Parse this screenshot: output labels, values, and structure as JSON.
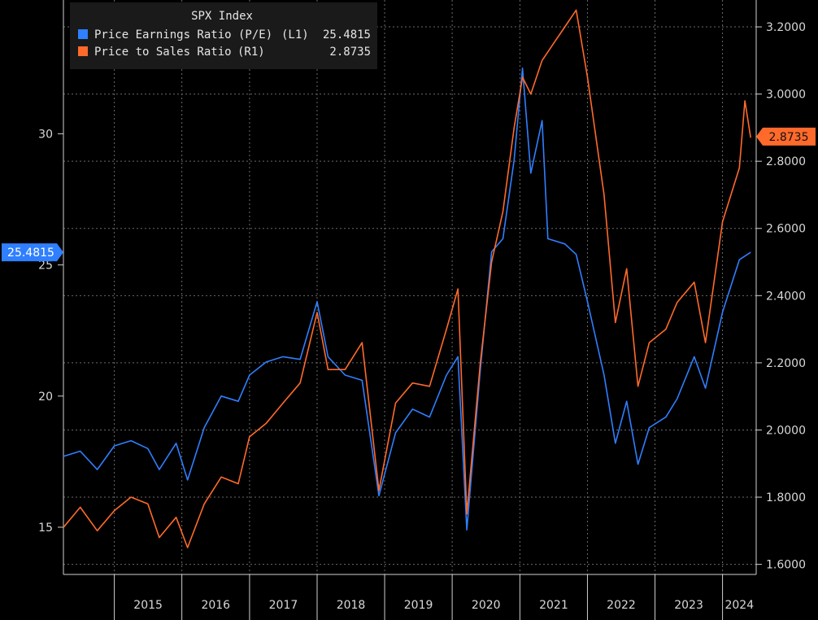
{
  "chart_data": {
    "type": "line",
    "title": "SPX Index",
    "x_range": [
      "2014-04-01",
      "2024-07-01"
    ],
    "x_ticks": [
      "2015",
      "2016",
      "2017",
      "2018",
      "2019",
      "2020",
      "2021",
      "2022",
      "2023",
      "2024"
    ],
    "y_left": {
      "range": [
        13.2,
        35.1
      ],
      "ticks": [
        "15",
        "20",
        "25",
        "30"
      ]
    },
    "y_right": {
      "range": [
        1.57,
        3.28
      ],
      "ticks": [
        "1.6000",
        "1.8000",
        "2.0000",
        "2.2000",
        "2.4000",
        "2.6000",
        "2.8000",
        "3.0000",
        "3.2000"
      ]
    },
    "grid": true,
    "legend_placement": "top-left",
    "series": [
      {
        "name": "Price Earnings Ratio (P/E)",
        "axis_label": "(L1)",
        "last_value": "25.4815",
        "color": "#2f7fff",
        "points": [
          [
            "2014-04-01",
            17.7
          ],
          [
            "2014-07-01",
            17.9
          ],
          [
            "2014-10-01",
            17.2
          ],
          [
            "2015-01-01",
            18.1
          ],
          [
            "2015-04-01",
            18.3
          ],
          [
            "2015-07-01",
            18.0
          ],
          [
            "2015-09-01",
            17.2
          ],
          [
            "2015-12-01",
            18.2
          ],
          [
            "2016-02-01",
            16.8
          ],
          [
            "2016-05-01",
            18.8
          ],
          [
            "2016-08-01",
            20.0
          ],
          [
            "2016-11-01",
            19.8
          ],
          [
            "2017-01-01",
            20.8
          ],
          [
            "2017-04-01",
            21.3
          ],
          [
            "2017-07-01",
            21.5
          ],
          [
            "2017-10-01",
            21.4
          ],
          [
            "2018-01-01",
            23.6
          ],
          [
            "2018-03-01",
            21.5
          ],
          [
            "2018-06-01",
            20.8
          ],
          [
            "2018-09-01",
            20.6
          ],
          [
            "2018-12-01",
            16.2
          ],
          [
            "2019-03-01",
            18.6
          ],
          [
            "2019-06-01",
            19.5
          ],
          [
            "2019-09-01",
            19.2
          ],
          [
            "2019-12-01",
            20.8
          ],
          [
            "2020-02-01",
            21.5
          ],
          [
            "2020-03-20",
            14.9
          ],
          [
            "2020-06-01",
            21.0
          ],
          [
            "2020-08-01",
            25.5
          ],
          [
            "2020-10-01",
            26.0
          ],
          [
            "2020-12-01",
            29.0
          ],
          [
            "2021-01-15",
            32.5
          ],
          [
            "2021-03-01",
            28.5
          ],
          [
            "2021-05-01",
            30.5
          ],
          [
            "2021-06-01",
            26.0
          ],
          [
            "2021-09-01",
            25.8
          ],
          [
            "2021-11-01",
            25.4
          ],
          [
            "2022-01-01",
            23.6
          ],
          [
            "2022-04-01",
            20.8
          ],
          [
            "2022-06-01",
            18.2
          ],
          [
            "2022-08-01",
            19.8
          ],
          [
            "2022-10-01",
            17.4
          ],
          [
            "2022-12-01",
            18.8
          ],
          [
            "2023-03-01",
            19.2
          ],
          [
            "2023-05-01",
            19.9
          ],
          [
            "2023-08-01",
            21.5
          ],
          [
            "2023-10-01",
            20.3
          ],
          [
            "2024-01-01",
            23.2
          ],
          [
            "2024-04-01",
            25.2
          ],
          [
            "2024-06-01",
            25.48
          ]
        ]
      },
      {
        "name": "Price to Sales Ratio",
        "axis_label": "(R1)",
        "last_value": "2.8735",
        "color": "#ff6a2b",
        "points": [
          [
            "2014-04-01",
            1.71
          ],
          [
            "2014-07-01",
            1.77
          ],
          [
            "2014-10-01",
            1.7
          ],
          [
            "2015-01-01",
            1.76
          ],
          [
            "2015-04-01",
            1.8
          ],
          [
            "2015-07-01",
            1.78
          ],
          [
            "2015-09-01",
            1.68
          ],
          [
            "2015-12-01",
            1.74
          ],
          [
            "2016-02-01",
            1.65
          ],
          [
            "2016-05-01",
            1.78
          ],
          [
            "2016-08-01",
            1.86
          ],
          [
            "2016-11-01",
            1.84
          ],
          [
            "2017-01-01",
            1.98
          ],
          [
            "2017-04-01",
            2.02
          ],
          [
            "2017-07-01",
            2.08
          ],
          [
            "2017-10-01",
            2.14
          ],
          [
            "2018-01-01",
            2.35
          ],
          [
            "2018-03-01",
            2.18
          ],
          [
            "2018-06-01",
            2.18
          ],
          [
            "2018-09-01",
            2.26
          ],
          [
            "2018-12-01",
            1.82
          ],
          [
            "2019-03-01",
            2.08
          ],
          [
            "2019-06-01",
            2.14
          ],
          [
            "2019-09-01",
            2.13
          ],
          [
            "2019-12-01",
            2.3
          ],
          [
            "2020-02-01",
            2.42
          ],
          [
            "2020-03-20",
            1.75
          ],
          [
            "2020-06-01",
            2.2
          ],
          [
            "2020-08-01",
            2.5
          ],
          [
            "2020-10-01",
            2.65
          ],
          [
            "2020-12-01",
            2.9
          ],
          [
            "2021-01-15",
            3.05
          ],
          [
            "2021-03-01",
            3.0
          ],
          [
            "2021-05-01",
            3.1
          ],
          [
            "2021-07-01",
            3.15
          ],
          [
            "2021-09-01",
            3.2
          ],
          [
            "2021-11-01",
            3.25
          ],
          [
            "2022-01-01",
            3.05
          ],
          [
            "2022-04-01",
            2.7
          ],
          [
            "2022-06-01",
            2.32
          ],
          [
            "2022-08-01",
            2.48
          ],
          [
            "2022-10-01",
            2.13
          ],
          [
            "2022-12-01",
            2.26
          ],
          [
            "2023-03-01",
            2.3
          ],
          [
            "2023-05-01",
            2.38
          ],
          [
            "2023-08-01",
            2.44
          ],
          [
            "2023-10-01",
            2.26
          ],
          [
            "2024-01-01",
            2.62
          ],
          [
            "2024-04-01",
            2.78
          ],
          [
            "2024-05-01",
            2.98
          ],
          [
            "2024-06-01",
            2.87
          ]
        ]
      }
    ]
  }
}
